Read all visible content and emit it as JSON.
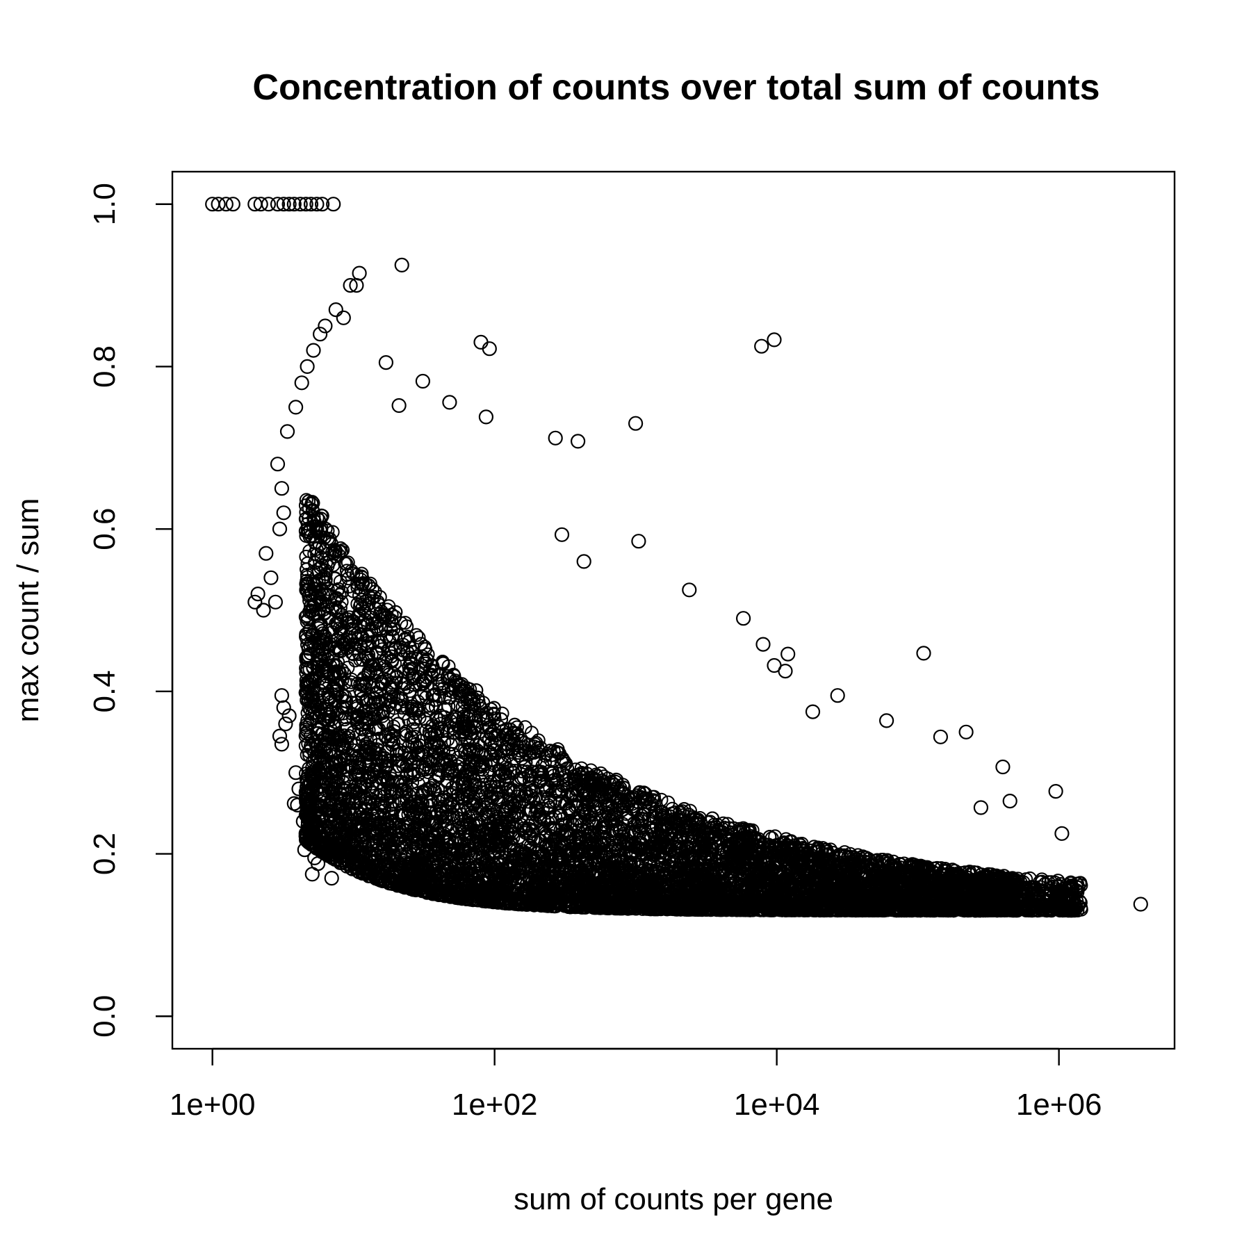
{
  "chart_data": {
    "type": "scatter",
    "title": "Concentration of counts over total sum of counts",
    "xlabel": "sum of counts per gene",
    "ylabel": "max count / sum",
    "x_scale": "log10",
    "xlim": [
      0.52,
      6600000
    ],
    "ylim": [
      -0.04,
      1.04
    ],
    "x_ticks": [
      1,
      100,
      10000,
      1000000
    ],
    "x_tick_labels": [
      "1e+00",
      "1e+02",
      "1e+04",
      "1e+06"
    ],
    "y_ticks": [
      0.0,
      0.2,
      0.4,
      0.6,
      0.8,
      1.0
    ],
    "y_tick_labels": [
      "0.0",
      "0.2",
      "0.4",
      "0.6",
      "0.8",
      "1.0"
    ],
    "grid": false,
    "legend": "none",
    "marker": "open-circle",
    "color": "#000000",
    "bulk_description": "Dense cloud: ratio falls from near 1.0 at low counts to about 0.13–0.2 at high counts",
    "points": [
      {
        "x": 1,
        "y": 1.0
      },
      {
        "x": 1.1,
        "y": 1.0
      },
      {
        "x": 1.25,
        "y": 1.0
      },
      {
        "x": 1.4,
        "y": 1.0
      },
      {
        "x": 2,
        "y": 1.0
      },
      {
        "x": 2.2,
        "y": 1.0
      },
      {
        "x": 2.5,
        "y": 1.0
      },
      {
        "x": 2.9,
        "y": 1.0
      },
      {
        "x": 3.2,
        "y": 1.0
      },
      {
        "x": 3.5,
        "y": 1.0
      },
      {
        "x": 3.8,
        "y": 1.0
      },
      {
        "x": 4.2,
        "y": 1.0
      },
      {
        "x": 4.6,
        "y": 1.0
      },
      {
        "x": 5.0,
        "y": 1.0
      },
      {
        "x": 5.5,
        "y": 1.0
      },
      {
        "x": 6.0,
        "y": 1.0
      },
      {
        "x": 7.2,
        "y": 1.0
      },
      {
        "x": 22,
        "y": 0.925
      },
      {
        "x": 11,
        "y": 0.915
      },
      {
        "x": 9.5,
        "y": 0.9
      },
      {
        "x": 10.5,
        "y": 0.9
      },
      {
        "x": 7.5,
        "y": 0.87
      },
      {
        "x": 8.5,
        "y": 0.86
      },
      {
        "x": 80,
        "y": 0.83
      },
      {
        "x": 92,
        "y": 0.822
      },
      {
        "x": 7800,
        "y": 0.825
      },
      {
        "x": 9600,
        "y": 0.833
      },
      {
        "x": 17,
        "y": 0.805
      },
      {
        "x": 31,
        "y": 0.782
      },
      {
        "x": 21,
        "y": 0.752
      },
      {
        "x": 48,
        "y": 0.756
      },
      {
        "x": 1000,
        "y": 0.73
      },
      {
        "x": 87,
        "y": 0.738
      },
      {
        "x": 390,
        "y": 0.708
      },
      {
        "x": 270,
        "y": 0.712
      },
      {
        "x": 1050,
        "y": 0.585
      },
      {
        "x": 300,
        "y": 0.593
      },
      {
        "x": 430,
        "y": 0.56
      },
      {
        "x": 2400,
        "y": 0.525
      },
      {
        "x": 5800,
        "y": 0.49
      },
      {
        "x": 8000,
        "y": 0.458
      },
      {
        "x": 12000,
        "y": 0.446
      },
      {
        "x": 11500,
        "y": 0.425
      },
      {
        "x": 9600,
        "y": 0.432
      },
      {
        "x": 110000,
        "y": 0.447
      },
      {
        "x": 18000,
        "y": 0.375
      },
      {
        "x": 27000,
        "y": 0.395
      },
      {
        "x": 60000,
        "y": 0.364
      },
      {
        "x": 145000,
        "y": 0.344
      },
      {
        "x": 220000,
        "y": 0.35
      },
      {
        "x": 400000,
        "y": 0.307
      },
      {
        "x": 950000,
        "y": 0.277
      },
      {
        "x": 450000,
        "y": 0.265
      },
      {
        "x": 280000,
        "y": 0.257
      },
      {
        "x": 1050000,
        "y": 0.225
      },
      {
        "x": 1100000,
        "y": 0.148
      },
      {
        "x": 3800000,
        "y": 0.138
      },
      {
        "x": 700000,
        "y": 0.14
      },
      {
        "x": 2.0,
        "y": 0.51
      },
      {
        "x": 2.3,
        "y": 0.5
      },
      {
        "x": 2.4,
        "y": 0.57
      },
      {
        "x": 2.6,
        "y": 0.54
      },
      {
        "x": 2.1,
        "y": 0.52
      },
      {
        "x": 2.8,
        "y": 0.51
      },
      {
        "x": 3.0,
        "y": 0.6
      },
      {
        "x": 3.2,
        "y": 0.62
      },
      {
        "x": 3.1,
        "y": 0.65
      },
      {
        "x": 2.9,
        "y": 0.68
      },
      {
        "x": 3.4,
        "y": 0.72
      },
      {
        "x": 3.9,
        "y": 0.75
      },
      {
        "x": 4.3,
        "y": 0.78
      },
      {
        "x": 4.7,
        "y": 0.8
      },
      {
        "x": 5.2,
        "y": 0.82
      },
      {
        "x": 5.8,
        "y": 0.84
      },
      {
        "x": 6.3,
        "y": 0.85
      },
      {
        "x": 3.1,
        "y": 0.395
      },
      {
        "x": 3.2,
        "y": 0.38
      },
      {
        "x": 3.3,
        "y": 0.36
      },
      {
        "x": 3.0,
        "y": 0.345
      },
      {
        "x": 3.1,
        "y": 0.335
      },
      {
        "x": 3.5,
        "y": 0.37
      },
      {
        "x": 3.9,
        "y": 0.3
      },
      {
        "x": 4.1,
        "y": 0.28
      },
      {
        "x": 4.0,
        "y": 0.26
      },
      {
        "x": 3.8,
        "y": 0.262
      },
      {
        "x": 4.4,
        "y": 0.24
      },
      {
        "x": 4.6,
        "y": 0.225
      },
      {
        "x": 4.5,
        "y": 0.205
      },
      {
        "x": 5.3,
        "y": 0.195
      },
      {
        "x": 5.6,
        "y": 0.188
      },
      {
        "x": 5.1,
        "y": 0.175
      },
      {
        "x": 7.0,
        "y": 0.17
      }
    ]
  }
}
